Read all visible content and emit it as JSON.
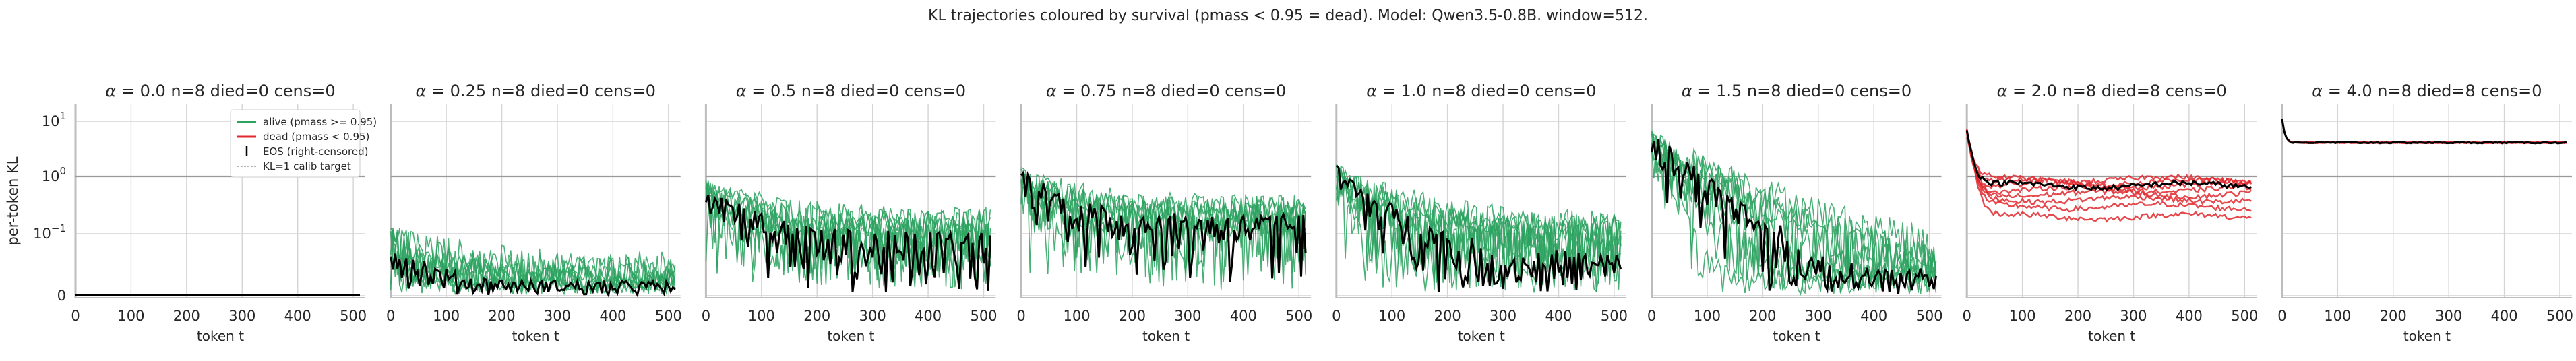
{
  "figure": {
    "suptitle": "KL trajectories coloured by survival (pmass < 0.95 = dead). Model: Qwen3.5-0.8B. window=512."
  },
  "colors": {
    "alive": "#2ca25f",
    "dead": "#e0282e",
    "mean": "#000000",
    "target": "#9a9a9a",
    "grid": "#d4d4d4",
    "axis": "#bdbdbd"
  },
  "chart_data": [
    {
      "type": "line",
      "title": "$\\alpha=0.0$  n=8  died=0  cens=0",
      "alpha": "0.0",
      "n": 8,
      "died": 0,
      "cens": 0,
      "xlabel": "token t",
      "ylabel": "per-token KL",
      "xlim": [
        0,
        512
      ],
      "yscale": "symlog",
      "xticks": [
        0,
        100,
        200,
        300,
        400,
        500
      ],
      "yticks_labels": [
        "0",
        "10^-1",
        "10^0",
        "10^1"
      ],
      "kl_target": 1,
      "trajectory": {
        "alive_level": 0.0,
        "mean_level": 0.0
      },
      "legend": {
        "position": "upper right",
        "entries": [
          "alive (pmass >= 0.95)",
          "dead (pmass < 0.95)",
          "EOS (right-censored)",
          "KL=1 calib target"
        ]
      }
    },
    {
      "type": "line",
      "title": "$\\alpha=0.25$  n=8  died=0  cens=0",
      "alpha": "0.25",
      "n": 8,
      "died": 0,
      "cens": 0,
      "xlabel": "token t",
      "xlim": [
        0,
        512
      ],
      "yscale": "symlog",
      "xticks": [
        0,
        100,
        200,
        300,
        400,
        500
      ],
      "kl_target": 1,
      "trajectory": {
        "alive_level": 0.03,
        "mean_level": 0.02,
        "start": 0.08
      }
    },
    {
      "type": "line",
      "title": "$\\alpha=0.5$  n=8  died=0  cens=0",
      "alpha": "0.5",
      "n": 8,
      "died": 0,
      "cens": 0,
      "xlabel": "token t",
      "xlim": [
        0,
        512
      ],
      "yscale": "symlog",
      "xticks": [
        0,
        100,
        200,
        300,
        400,
        500
      ],
      "kl_target": 1,
      "trajectory": {
        "alive_level": 0.12,
        "mean_level": 0.09,
        "start": 0.5
      }
    },
    {
      "type": "line",
      "title": "$\\alpha=0.75$  n=8  died=0  cens=0",
      "alpha": "0.75",
      "n": 8,
      "died": 0,
      "cens": 0,
      "xlabel": "token t",
      "xlim": [
        0,
        512
      ],
      "yscale": "symlog",
      "xticks": [
        0,
        100,
        200,
        300,
        400,
        500
      ],
      "kl_target": 1,
      "trajectory": {
        "alive_level": 0.2,
        "mean_level": 0.18,
        "start": 0.8
      }
    },
    {
      "type": "line",
      "title": "$\\alpha=1.0$  n=8  died=0  cens=0",
      "alpha": "1.0",
      "n": 8,
      "died": 0,
      "cens": 0,
      "xlabel": "token t",
      "xlim": [
        0,
        512
      ],
      "yscale": "symlog",
      "xticks": [
        0,
        100,
        200,
        300,
        400,
        500
      ],
      "kl_target": 1,
      "trajectory": {
        "alive_level": 0.1,
        "mean_level": 0.06,
        "start": 0.9
      }
    },
    {
      "type": "line",
      "title": "$\\alpha=1.5$  n=8  died=0  cens=0",
      "alpha": "1.5",
      "n": 8,
      "died": 0,
      "cens": 0,
      "xlabel": "token t",
      "xlim": [
        0,
        512
      ],
      "yscale": "symlog",
      "xticks": [
        0,
        100,
        200,
        300,
        400,
        500
      ],
      "kl_target": 1,
      "trajectory": {
        "alive_level": 0.04,
        "mean_level": 0.035,
        "start": 3.5
      }
    },
    {
      "type": "line",
      "title": "$\\alpha=2.0$  n=8  died=8  cens=0",
      "alpha": "2.0",
      "n": 8,
      "died": 8,
      "cens": 0,
      "xlabel": "token t",
      "xlim": [
        0,
        512
      ],
      "yscale": "symlog",
      "xticks": [
        0,
        100,
        200,
        300,
        400,
        500
      ],
      "kl_target": 1,
      "trajectory": {
        "dead_level_range": [
          0.2,
          0.9
        ],
        "mean_level": 0.7,
        "start": 6
      }
    },
    {
      "type": "line",
      "title": "$\\alpha=4.0$  n=8  died=8  cens=0",
      "alpha": "4.0",
      "n": 8,
      "died": 8,
      "cens": 0,
      "xlabel": "token t",
      "xlim": [
        0,
        512
      ],
      "yscale": "symlog",
      "xticks": [
        0,
        100,
        200,
        300,
        400,
        500
      ],
      "kl_target": 1,
      "trajectory": {
        "dead_level": 3.9,
        "mean_level": 3.9,
        "start": 10
      }
    }
  ]
}
